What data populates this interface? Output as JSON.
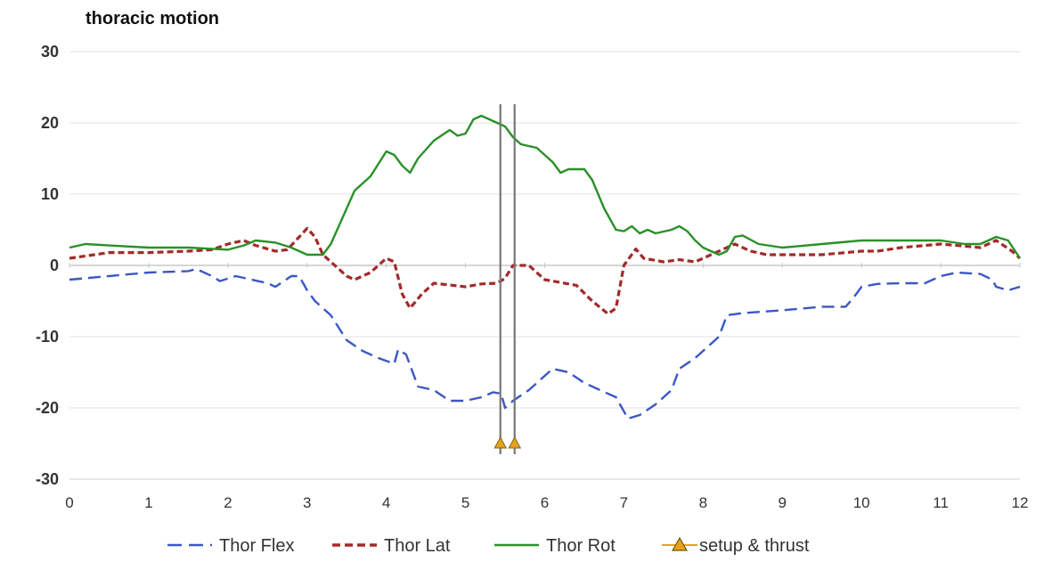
{
  "chart_data": {
    "type": "line",
    "title": "thoracic motion",
    "xlabel": "",
    "ylabel": "",
    "xlim": [
      0,
      12
    ],
    "ylim": [
      -30,
      30
    ],
    "x_ticks": [
      "0",
      "1",
      "2",
      "3",
      "4",
      "5",
      "6",
      "7",
      "8",
      "9",
      "10",
      "11",
      "12"
    ],
    "y_ticks": [
      "30",
      "20",
      "10",
      "0",
      "-10",
      "-20",
      "-30"
    ],
    "grid": true,
    "legend_position": "bottom",
    "series": [
      {
        "name": "Thor Flex",
        "color": "#3b57c4",
        "style": "dashed",
        "points": [
          [
            0,
            -2
          ],
          [
            0.5,
            -1.5
          ],
          [
            1,
            -1
          ],
          [
            1.5,
            -0.8
          ],
          [
            1.6,
            -0.5
          ],
          [
            1.8,
            -1.5
          ],
          [
            1.9,
            -2.2
          ],
          [
            2.1,
            -1.5
          ],
          [
            2.3,
            -2
          ],
          [
            2.5,
            -2.5
          ],
          [
            2.6,
            -3
          ],
          [
            2.8,
            -1.5
          ],
          [
            2.9,
            -1.5
          ],
          [
            3,
            -3.5
          ],
          [
            3.1,
            -5
          ],
          [
            3.3,
            -7
          ],
          [
            3.5,
            -10.5
          ],
          [
            3.7,
            -12
          ],
          [
            3.9,
            -13
          ],
          [
            4.1,
            -13.8
          ],
          [
            4.15,
            -11.8
          ],
          [
            4.25,
            -12.5
          ],
          [
            4.4,
            -17
          ],
          [
            4.6,
            -17.5
          ],
          [
            4.8,
            -19
          ],
          [
            5,
            -19
          ],
          [
            5.2,
            -18.5
          ],
          [
            5.35,
            -17.8
          ],
          [
            5.45,
            -18
          ],
          [
            5.5,
            -20
          ],
          [
            5.6,
            -19
          ],
          [
            5.8,
            -17.5
          ],
          [
            6,
            -15.5
          ],
          [
            6.1,
            -14.5
          ],
          [
            6.3,
            -15
          ],
          [
            6.5,
            -16.5
          ],
          [
            6.7,
            -17.5
          ],
          [
            6.9,
            -18.5
          ],
          [
            7.05,
            -21.5
          ],
          [
            7.2,
            -21
          ],
          [
            7.4,
            -19.5
          ],
          [
            7.6,
            -17.5
          ],
          [
            7.7,
            -14.5
          ],
          [
            7.9,
            -13
          ],
          [
            8,
            -12
          ],
          [
            8.2,
            -10
          ],
          [
            8.3,
            -7
          ],
          [
            8.5,
            -6.7
          ],
          [
            9,
            -6.3
          ],
          [
            9.5,
            -5.8
          ],
          [
            9.8,
            -5.8
          ],
          [
            9.9,
            -4.5
          ],
          [
            10,
            -3
          ],
          [
            10.2,
            -2.6
          ],
          [
            10.5,
            -2.5
          ],
          [
            10.8,
            -2.5
          ],
          [
            11,
            -1.5
          ],
          [
            11.2,
            -1
          ],
          [
            11.5,
            -1.2
          ],
          [
            11.65,
            -2
          ],
          [
            11.7,
            -3
          ],
          [
            11.85,
            -3.5
          ],
          [
            12,
            -3
          ]
        ]
      },
      {
        "name": "Thor Lat",
        "color": "#a32a2a",
        "style": "dashed",
        "points": [
          [
            0,
            1
          ],
          [
            0.5,
            1.8
          ],
          [
            1,
            1.8
          ],
          [
            1.5,
            2
          ],
          [
            1.8,
            2.2
          ],
          [
            2,
            3
          ],
          [
            2.2,
            3.5
          ],
          [
            2.35,
            2.8
          ],
          [
            2.6,
            2
          ],
          [
            2.75,
            2.2
          ],
          [
            2.9,
            4
          ],
          [
            3,
            5.2
          ],
          [
            3.1,
            4
          ],
          [
            3.2,
            1.5
          ],
          [
            3.3,
            0.5
          ],
          [
            3.5,
            -1.5
          ],
          [
            3.6,
            -2
          ],
          [
            3.8,
            -1
          ],
          [
            4,
            1
          ],
          [
            4.1,
            0.5
          ],
          [
            4.2,
            -4
          ],
          [
            4.3,
            -6
          ],
          [
            4.45,
            -4
          ],
          [
            4.6,
            -2.5
          ],
          [
            5,
            -3
          ],
          [
            5.2,
            -2.6
          ],
          [
            5.4,
            -2.5
          ],
          [
            5.5,
            -1.8
          ],
          [
            5.6,
            0
          ],
          [
            5.8,
            0
          ],
          [
            6,
            -2
          ],
          [
            6.4,
            -2.8
          ],
          [
            6.6,
            -5
          ],
          [
            6.8,
            -6.8
          ],
          [
            6.9,
            -6
          ],
          [
            7,
            0
          ],
          [
            7.15,
            2.3
          ],
          [
            7.25,
            1
          ],
          [
            7.5,
            0.5
          ],
          [
            7.7,
            0.8
          ],
          [
            7.9,
            0.5
          ],
          [
            8,
            1
          ],
          [
            8.2,
            2
          ],
          [
            8.4,
            3
          ],
          [
            8.6,
            2
          ],
          [
            8.8,
            1.5
          ],
          [
            9,
            1.5
          ],
          [
            9.5,
            1.5
          ],
          [
            10,
            2
          ],
          [
            10.2,
            2
          ],
          [
            10.5,
            2.5
          ],
          [
            11,
            3
          ],
          [
            11.5,
            2.5
          ],
          [
            11.7,
            3.5
          ],
          [
            11.9,
            2
          ],
          [
            12,
            1
          ]
        ]
      },
      {
        "name": "Thor Rot",
        "color": "#2a9028",
        "style": "solid",
        "points": [
          [
            0,
            2.5
          ],
          [
            0.2,
            3
          ],
          [
            0.5,
            2.8
          ],
          [
            1,
            2.5
          ],
          [
            1.5,
            2.5
          ],
          [
            2,
            2.2
          ],
          [
            2.2,
            2.8
          ],
          [
            2.35,
            3.5
          ],
          [
            2.6,
            3.2
          ],
          [
            2.8,
            2.5
          ],
          [
            3,
            1.5
          ],
          [
            3.2,
            1.5
          ],
          [
            3.3,
            3
          ],
          [
            3.5,
            8
          ],
          [
            3.6,
            10.5
          ],
          [
            3.8,
            12.5
          ],
          [
            4,
            16
          ],
          [
            4.1,
            15.5
          ],
          [
            4.2,
            14
          ],
          [
            4.3,
            13
          ],
          [
            4.4,
            15
          ],
          [
            4.6,
            17.5
          ],
          [
            4.8,
            19
          ],
          [
            4.9,
            18.2
          ],
          [
            5,
            18.5
          ],
          [
            5.1,
            20.5
          ],
          [
            5.2,
            21
          ],
          [
            5.3,
            20.5
          ],
          [
            5.5,
            19.5
          ],
          [
            5.6,
            18
          ],
          [
            5.7,
            17
          ],
          [
            5.9,
            16.5
          ],
          [
            6.1,
            14.5
          ],
          [
            6.2,
            13
          ],
          [
            6.3,
            13.5
          ],
          [
            6.5,
            13.5
          ],
          [
            6.6,
            12
          ],
          [
            6.75,
            8
          ],
          [
            6.9,
            5
          ],
          [
            7,
            4.8
          ],
          [
            7.1,
            5.5
          ],
          [
            7.2,
            4.5
          ],
          [
            7.3,
            5
          ],
          [
            7.4,
            4.5
          ],
          [
            7.6,
            5
          ],
          [
            7.7,
            5.5
          ],
          [
            7.8,
            4.8
          ],
          [
            7.9,
            3.5
          ],
          [
            8,
            2.5
          ],
          [
            8.2,
            1.5
          ],
          [
            8.3,
            2
          ],
          [
            8.4,
            4
          ],
          [
            8.5,
            4.2
          ],
          [
            8.7,
            3
          ],
          [
            9,
            2.5
          ],
          [
            9.5,
            3
          ],
          [
            10,
            3.5
          ],
          [
            10.5,
            3.5
          ],
          [
            11,
            3.5
          ],
          [
            11.3,
            3
          ],
          [
            11.5,
            3
          ],
          [
            11.7,
            4
          ],
          [
            11.85,
            3.5
          ],
          [
            12,
            1
          ]
        ]
      },
      {
        "name": "setup & thrust",
        "color": "#e8a01c",
        "style": "markers",
        "points": [
          [
            5.44,
            -25
          ],
          [
            5.62,
            -25
          ]
        ]
      }
    ],
    "vertical_lines": [
      5.44,
      5.62
    ]
  }
}
